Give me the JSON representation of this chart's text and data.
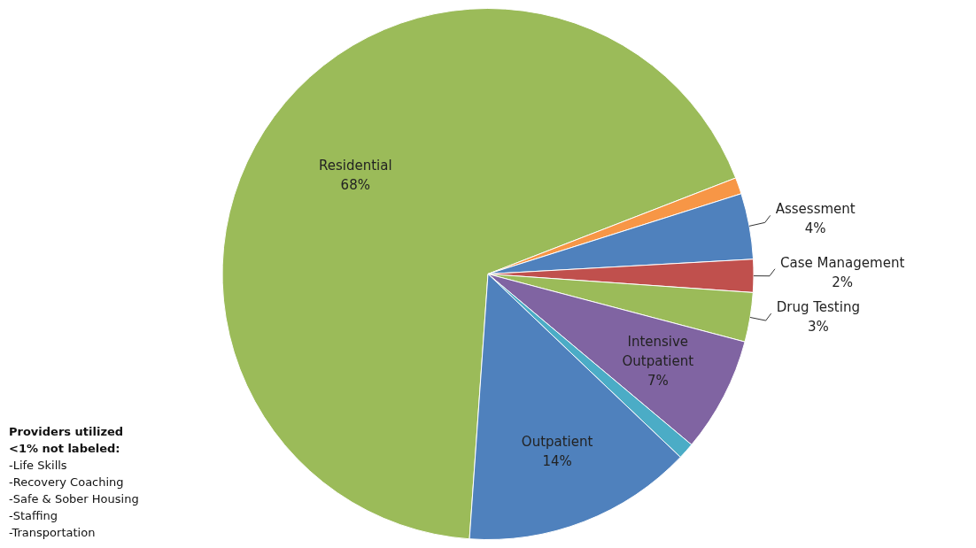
{
  "chart_data": {
    "type": "pie",
    "categories": [
      "Residential",
      null,
      "Assessment",
      "Case Management",
      "Drug Testing",
      "Intensive Outpatient",
      null,
      "Outpatient"
    ],
    "values": [
      68,
      1,
      4,
      2,
      3,
      7,
      1,
      14
    ],
    "value_labels": [
      "68%",
      null,
      "4%",
      "2%",
      "3%",
      "7%",
      null,
      "14%"
    ],
    "colors": [
      "#9bbb59",
      "#f79646",
      "#4f81bd",
      "#c0504d",
      "#9bbb59",
      "#8064a2",
      "#4bacc6",
      "#4f81bd"
    ],
    "legend": false,
    "annotations": [
      "Providers utilized <1% not labeled:",
      "-Life Skills",
      "-Recovery Coaching",
      "-Safe & Sober Housing",
      "-Staffing",
      "-Transportation"
    ]
  }
}
